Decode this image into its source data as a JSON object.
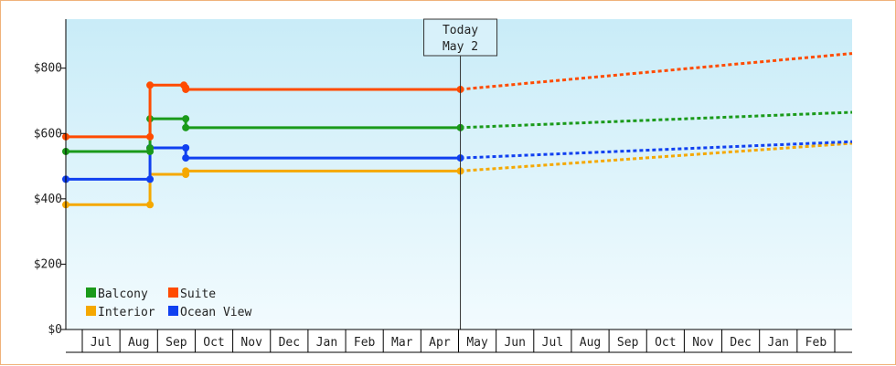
{
  "chart_data": {
    "type": "line",
    "ylim": [
      0,
      950
    ],
    "y_ticks": [
      {
        "value": 0,
        "label": "$0"
      },
      {
        "value": 200,
        "label": "$200"
      },
      {
        "value": 400,
        "label": "$400"
      },
      {
        "value": 600,
        "label": "$600"
      },
      {
        "value": 800,
        "label": "$800"
      }
    ],
    "x_months": [
      "Jul",
      "Aug",
      "Sep",
      "Oct",
      "Nov",
      "Dec",
      "Jan",
      "Feb",
      "Mar",
      "Apr",
      "May",
      "Jun",
      "Jul",
      "Aug",
      "Sep",
      "Oct",
      "Nov",
      "Dec",
      "Jan",
      "Feb"
    ],
    "grid": false,
    "legend": {
      "placement": "bottom-left"
    },
    "today": {
      "line1": "Today",
      "line2": "May 2",
      "month_pos": 9.55
    },
    "series": [
      {
        "name": "Balcony",
        "color": "#1a9a1a",
        "steps": [
          [
            -0.5,
            545
          ],
          [
            1.3,
            545
          ],
          [
            1.3,
            645
          ],
          [
            2.25,
            645
          ],
          [
            2.25,
            618
          ],
          [
            9.55,
            618
          ]
        ],
        "markers": [
          [
            -0.5,
            545
          ],
          [
            1.3,
            545
          ],
          [
            1.3,
            555
          ],
          [
            1.3,
            645
          ],
          [
            2.25,
            645
          ],
          [
            2.25,
            618
          ],
          [
            9.55,
            618
          ]
        ],
        "forecast": [
          [
            9.55,
            618
          ],
          [
            20.5,
            665
          ]
        ]
      },
      {
        "name": "Suite",
        "color": "#ff4b00",
        "steps": [
          [
            -0.5,
            590
          ],
          [
            1.3,
            590
          ],
          [
            1.3,
            748
          ],
          [
            2.25,
            748
          ],
          [
            2.25,
            735
          ],
          [
            9.55,
            735
          ]
        ],
        "markers": [
          [
            -0.5,
            590
          ],
          [
            1.3,
            590
          ],
          [
            1.3,
            748
          ],
          [
            2.2,
            748
          ],
          [
            2.25,
            740
          ],
          [
            2.25,
            735
          ],
          [
            9.55,
            735
          ]
        ],
        "forecast": [
          [
            9.55,
            735
          ],
          [
            20.5,
            845
          ]
        ]
      },
      {
        "name": "Interior",
        "color": "#f5a800",
        "steps": [
          [
            -0.5,
            382
          ],
          [
            1.3,
            382
          ],
          [
            1.3,
            475
          ],
          [
            2.25,
            475
          ],
          [
            2.25,
            485
          ],
          [
            9.55,
            485
          ]
        ],
        "markers": [
          [
            -0.5,
            382
          ],
          [
            1.3,
            382
          ],
          [
            2.25,
            475
          ],
          [
            2.25,
            485
          ],
          [
            9.55,
            485
          ]
        ],
        "forecast": [
          [
            9.55,
            485
          ],
          [
            20.5,
            570
          ]
        ]
      },
      {
        "name": "Ocean View",
        "color": "#1040f0",
        "steps": [
          [
            -0.5,
            460
          ],
          [
            1.3,
            460
          ],
          [
            1.3,
            556
          ],
          [
            2.25,
            556
          ],
          [
            2.25,
            525
          ],
          [
            9.55,
            525
          ]
        ],
        "markers": [
          [
            -0.5,
            460
          ],
          [
            1.3,
            460
          ],
          [
            1.3,
            556
          ],
          [
            2.25,
            556
          ],
          [
            2.25,
            525
          ],
          [
            9.55,
            525
          ]
        ],
        "forecast": [
          [
            9.55,
            525
          ],
          [
            20.5,
            575
          ]
        ]
      }
    ]
  }
}
